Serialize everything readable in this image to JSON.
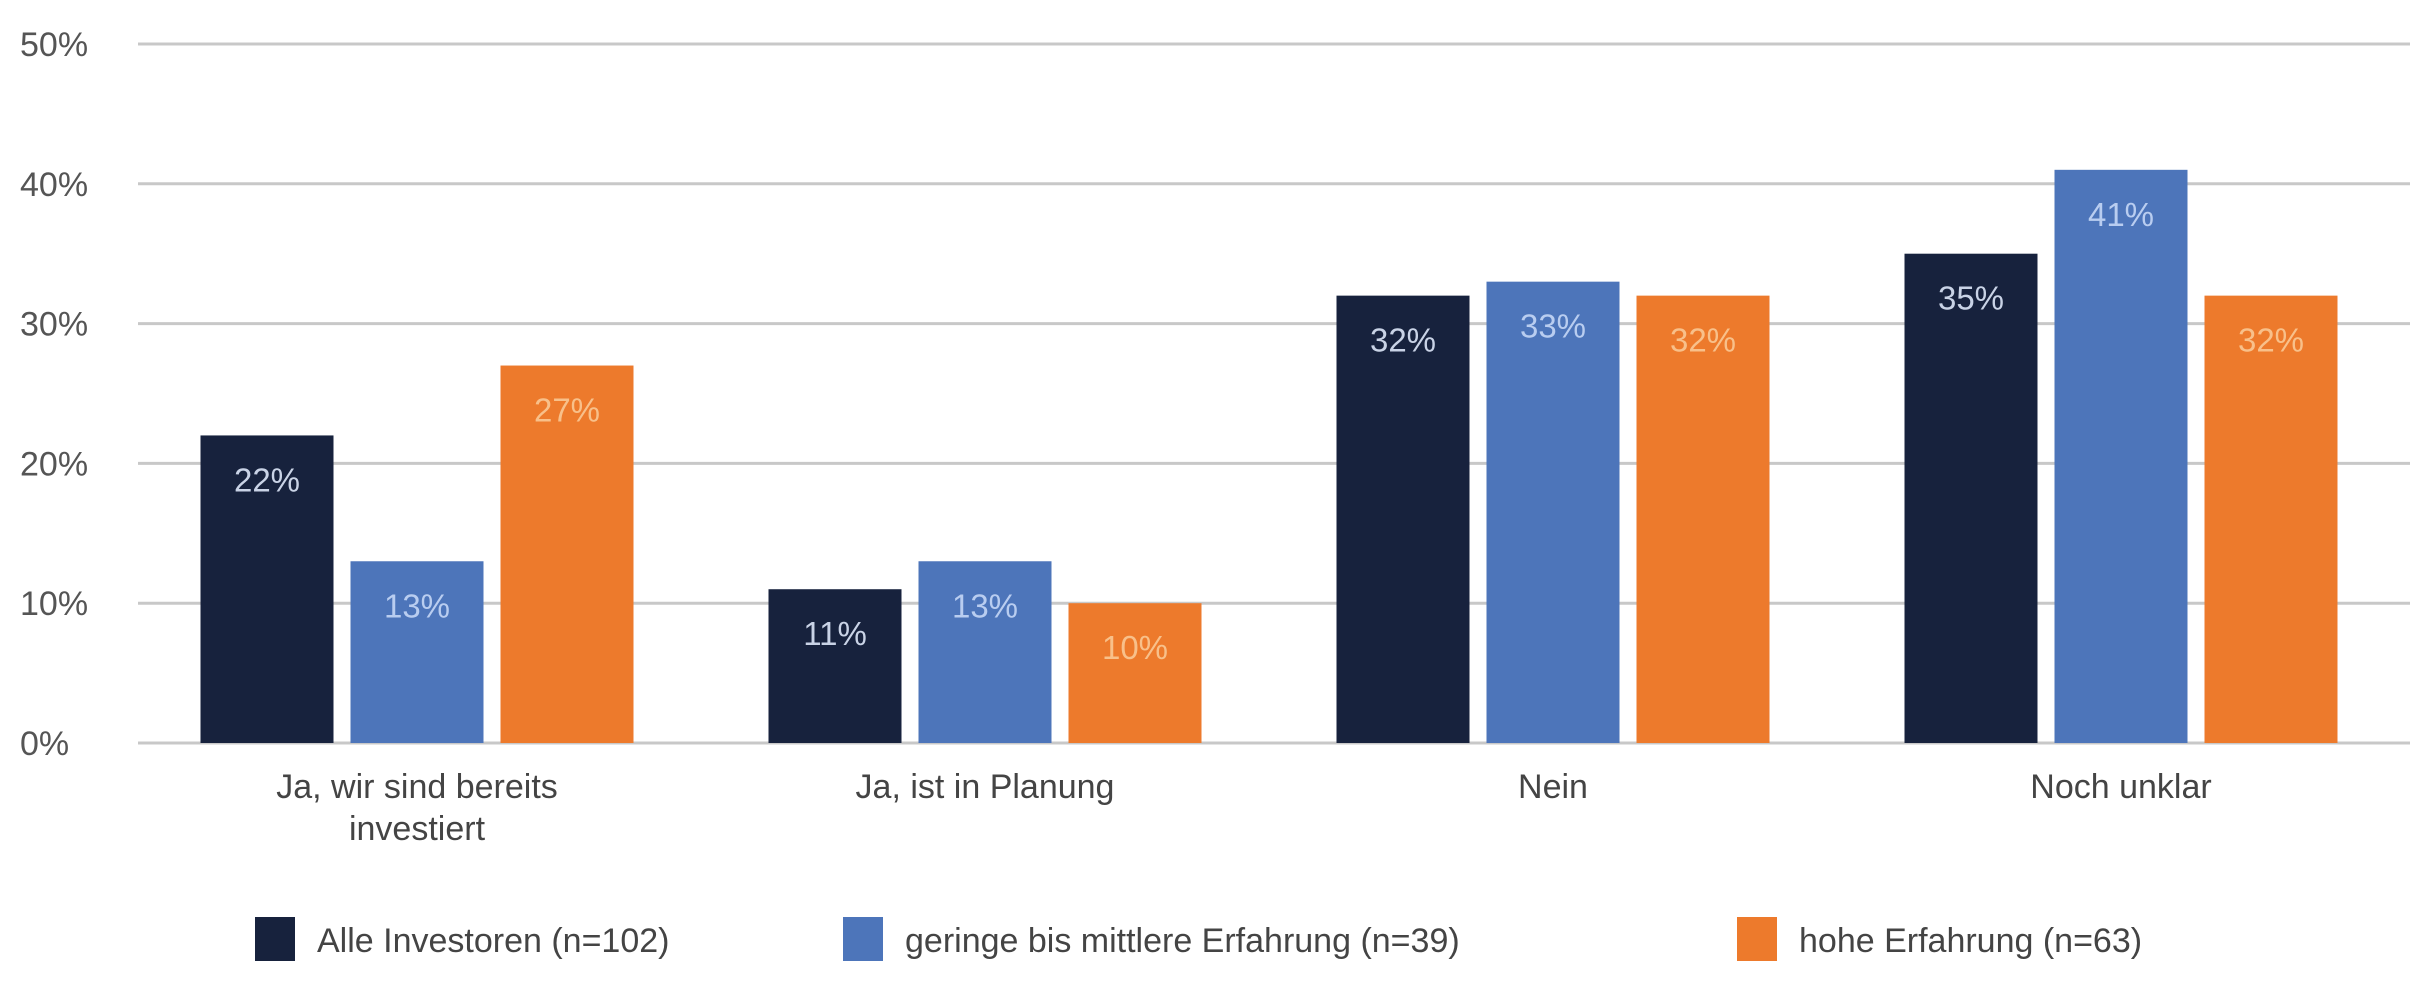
{
  "chart_data": {
    "type": "bar",
    "title": "",
    "xlabel": "",
    "ylabel": "",
    "ylim": [
      0,
      50
    ],
    "yticks": [
      0,
      10,
      20,
      30,
      40,
      50
    ],
    "ytick_labels": [
      "0%",
      "10%",
      "20%",
      "30%",
      "40%",
      "50%"
    ],
    "grid": true,
    "legend_position": "bottom",
    "categories": [
      [
        "Ja, wir sind bereits",
        "investiert"
      ],
      [
        "Ja, ist in Planung"
      ],
      [
        "Nein"
      ],
      [
        "Noch unklar"
      ]
    ],
    "series": [
      {
        "name": "Alle Investoren (n=102)",
        "color": "#17223d",
        "label_color": "#c9d3e6",
        "values": [
          22,
          11,
          32,
          35
        ],
        "labels": [
          "22%",
          "11%",
          "32%",
          "35%"
        ]
      },
      {
        "name": "geringe bis mittlere Erfahrung (n=39)",
        "color": "#4d75ba",
        "label_color": "#b9cdf0",
        "values": [
          13,
          13,
          33,
          41
        ],
        "labels": [
          "13%",
          "13%",
          "33%",
          "41%"
        ]
      },
      {
        "name": "hohe Erfahrung (n=63)",
        "color": "#ed7a2c",
        "label_color": "#f8c08a",
        "values": [
          27,
          10,
          32,
          32
        ],
        "labels": [
          "27%",
          "10%",
          "32%",
          "32%"
        ]
      }
    ]
  }
}
